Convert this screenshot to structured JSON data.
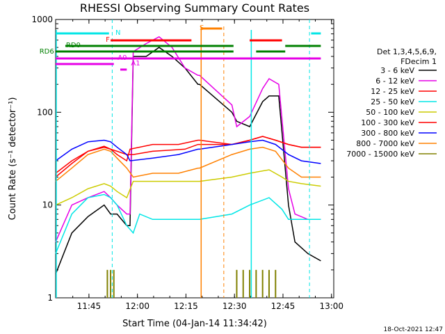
{
  "chart_data": {
    "type": "line",
    "title": "RHESSI Observing Summary Count Rates",
    "xlabel": "Start Time (04-Jan-14 11:34:42)",
    "ylabel": "Count Rate (s⁻¹ detector⁻¹)",
    "yscale": "log",
    "ylim": [
      1,
      1000
    ],
    "xlim_minutes": [
      11.6,
      65.1
    ],
    "x_ticks": [
      {
        "label": "11:45",
        "min": 45
      },
      {
        "label": "12:00",
        "min": 60
      },
      {
        "label": "12:15",
        "min": 75
      },
      {
        "label": "12:30",
        "min": 90
      },
      {
        "label": "12:45",
        "min": 105
      },
      {
        "label": "13:00",
        "min": 120
      }
    ],
    "y_ticks": [
      {
        "label": "1",
        "v": 1
      },
      {
        "label": "10",
        "v": 10
      },
      {
        "label": "100",
        "v": 100
      },
      {
        "label": "1000",
        "v": 1000
      }
    ],
    "legend_header": [
      "Det 1,3,4,5,6,9,",
      "FDecim 1"
    ],
    "series": [
      {
        "name": "3 - 6 keV",
        "color": "#000000",
        "points": [
          [
            0,
            1.8
          ],
          [
            5,
            5
          ],
          [
            10,
            7.5
          ],
          [
            15,
            10
          ],
          [
            17,
            8
          ],
          [
            19,
            8
          ],
          [
            22,
            6
          ],
          [
            23,
            6
          ],
          [
            24,
            400
          ],
          [
            28,
            400
          ],
          [
            32,
            500
          ],
          [
            36,
            400
          ],
          [
            40,
            300
          ],
          [
            44,
            200
          ],
          [
            44.5,
            200
          ],
          [
            54.5,
            100
          ],
          [
            56,
            80
          ],
          [
            60,
            70
          ],
          [
            64,
            130
          ],
          [
            66,
            150
          ],
          [
            69,
            150
          ],
          [
            72,
            10
          ],
          [
            74,
            4
          ],
          [
            78,
            3
          ],
          [
            82,
            2.5
          ]
        ]
      },
      {
        "name": "6 - 12 keV",
        "color": "#e600e6",
        "points": [
          [
            0,
            4
          ],
          [
            5,
            10
          ],
          [
            10,
            12
          ],
          [
            15,
            14
          ],
          [
            17,
            12
          ],
          [
            19,
            10
          ],
          [
            22,
            8
          ],
          [
            23,
            8
          ],
          [
            24,
            450
          ],
          [
            28,
            550
          ],
          [
            32,
            650
          ],
          [
            36,
            500
          ],
          [
            40,
            300
          ],
          [
            44,
            250
          ],
          [
            44.5,
            250
          ],
          [
            54.5,
            120
          ],
          [
            56,
            70
          ],
          [
            60,
            90
          ],
          [
            64,
            180
          ],
          [
            66,
            230
          ],
          [
            69,
            200
          ],
          [
            72,
            15
          ],
          [
            74,
            8
          ],
          [
            78,
            7
          ],
          [
            82,
            7
          ]
        ]
      },
      {
        "name": "12 - 25 keV",
        "color": "#ff0000",
        "points": [
          [
            0,
            22
          ],
          [
            5,
            30
          ],
          [
            10,
            38
          ],
          [
            15,
            42
          ],
          [
            17,
            40
          ],
          [
            19,
            38
          ],
          [
            22,
            35
          ],
          [
            23,
            35
          ],
          [
            24,
            35
          ],
          [
            30,
            38
          ],
          [
            40,
            40
          ],
          [
            44,
            45
          ],
          [
            44.5,
            45
          ],
          [
            54.5,
            45
          ],
          [
            60,
            50
          ],
          [
            64,
            55
          ],
          [
            68,
            50
          ],
          [
            72,
            45
          ],
          [
            76,
            42
          ],
          [
            82,
            42
          ]
        ]
      },
      {
        "name": "25 - 50 keV",
        "color": "#00e6e6",
        "points": [
          [
            0,
            3
          ],
          [
            5,
            8
          ],
          [
            10,
            12
          ],
          [
            15,
            13
          ],
          [
            17,
            12
          ],
          [
            19,
            10
          ],
          [
            22,
            6
          ],
          [
            24,
            5
          ],
          [
            26,
            8
          ],
          [
            30,
            7
          ],
          [
            35,
            7
          ],
          [
            44,
            7
          ],
          [
            44.5,
            7
          ],
          [
            54.5,
            8
          ],
          [
            60,
            10
          ],
          [
            66,
            12
          ],
          [
            70,
            9
          ],
          [
            72,
            7
          ],
          [
            76,
            7
          ],
          [
            82,
            7
          ]
        ]
      },
      {
        "name": "50 - 100 keV",
        "color": "#cccc00",
        "points": [
          [
            0,
            10
          ],
          [
            5,
            12
          ],
          [
            10,
            15
          ],
          [
            15,
            17
          ],
          [
            17,
            16
          ],
          [
            19,
            14
          ],
          [
            22,
            12
          ],
          [
            24,
            18
          ],
          [
            30,
            18
          ],
          [
            40,
            18
          ],
          [
            44,
            18
          ],
          [
            44.5,
            18
          ],
          [
            54.5,
            20
          ],
          [
            60,
            22
          ],
          [
            66,
            24
          ],
          [
            70,
            20
          ],
          [
            72,
            18
          ],
          [
            76,
            17
          ],
          [
            82,
            16
          ]
        ]
      },
      {
        "name": "100 - 300 keV",
        "color": "#ff0000",
        "points": [
          [
            0,
            20
          ],
          [
            5,
            28
          ],
          [
            10,
            38
          ],
          [
            15,
            43
          ],
          [
            17,
            40
          ],
          [
            19,
            35
          ],
          [
            22,
            30
          ],
          [
            23,
            40
          ],
          [
            30,
            45
          ],
          [
            38,
            45
          ],
          [
            44,
            50
          ],
          [
            44.5,
            50
          ],
          [
            54.5,
            45
          ],
          [
            60,
            50
          ],
          [
            64,
            55
          ],
          [
            68,
            50
          ],
          [
            72,
            45
          ],
          [
            76,
            42
          ],
          [
            82,
            42
          ]
        ]
      },
      {
        "name": "300 - 800 keV",
        "color": "#0000ff",
        "points": [
          [
            0,
            30
          ],
          [
            5,
            40
          ],
          [
            10,
            48
          ],
          [
            15,
            50
          ],
          [
            17,
            48
          ],
          [
            19,
            42
          ],
          [
            22,
            35
          ],
          [
            23,
            30
          ],
          [
            30,
            32
          ],
          [
            38,
            35
          ],
          [
            44,
            40
          ],
          [
            44.5,
            40
          ],
          [
            54.5,
            45
          ],
          [
            60,
            48
          ],
          [
            64,
            50
          ],
          [
            68,
            45
          ],
          [
            72,
            35
          ],
          [
            76,
            30
          ],
          [
            82,
            28
          ]
        ]
      },
      {
        "name": "800 - 7000 keV",
        "color": "#ff8000",
        "points": [
          [
            0,
            18
          ],
          [
            5,
            25
          ],
          [
            10,
            35
          ],
          [
            15,
            40
          ],
          [
            17,
            38
          ],
          [
            19,
            32
          ],
          [
            22,
            25
          ],
          [
            24,
            20
          ],
          [
            30,
            22
          ],
          [
            38,
            22
          ],
          [
            44,
            25
          ],
          [
            44.5,
            25
          ],
          [
            54.5,
            35
          ],
          [
            60,
            40
          ],
          [
            64,
            42
          ],
          [
            68,
            38
          ],
          [
            72,
            25
          ],
          [
            76,
            20
          ],
          [
            82,
            20
          ]
        ]
      },
      {
        "name": "7000 - 15000 keV",
        "color": "#808000",
        "points": [
          [
            16,
            2
          ],
          [
            17,
            2
          ],
          [
            18,
            2
          ],
          [
            56,
            2
          ],
          [
            58,
            2
          ],
          [
            60,
            2
          ],
          [
            62,
            2
          ],
          [
            64,
            2
          ],
          [
            66,
            2
          ],
          [
            68,
            2
          ]
        ]
      }
    ],
    "annotations": [
      {
        "label": "N",
        "color": "#00e6e6"
      },
      {
        "label": "F",
        "color": "#ff0000"
      },
      {
        "label": "RD0",
        "color": "#008000"
      },
      {
        "label": "RD6",
        "color": "#008000"
      },
      {
        "label": "A0",
        "color": "#e600e6"
      },
      {
        "label": "A1",
        "color": "#e600e6"
      },
      {
        "label": "S",
        "color": "#ff8000"
      }
    ]
  },
  "footer_timestamp": "18-Oct-2021 12:47"
}
